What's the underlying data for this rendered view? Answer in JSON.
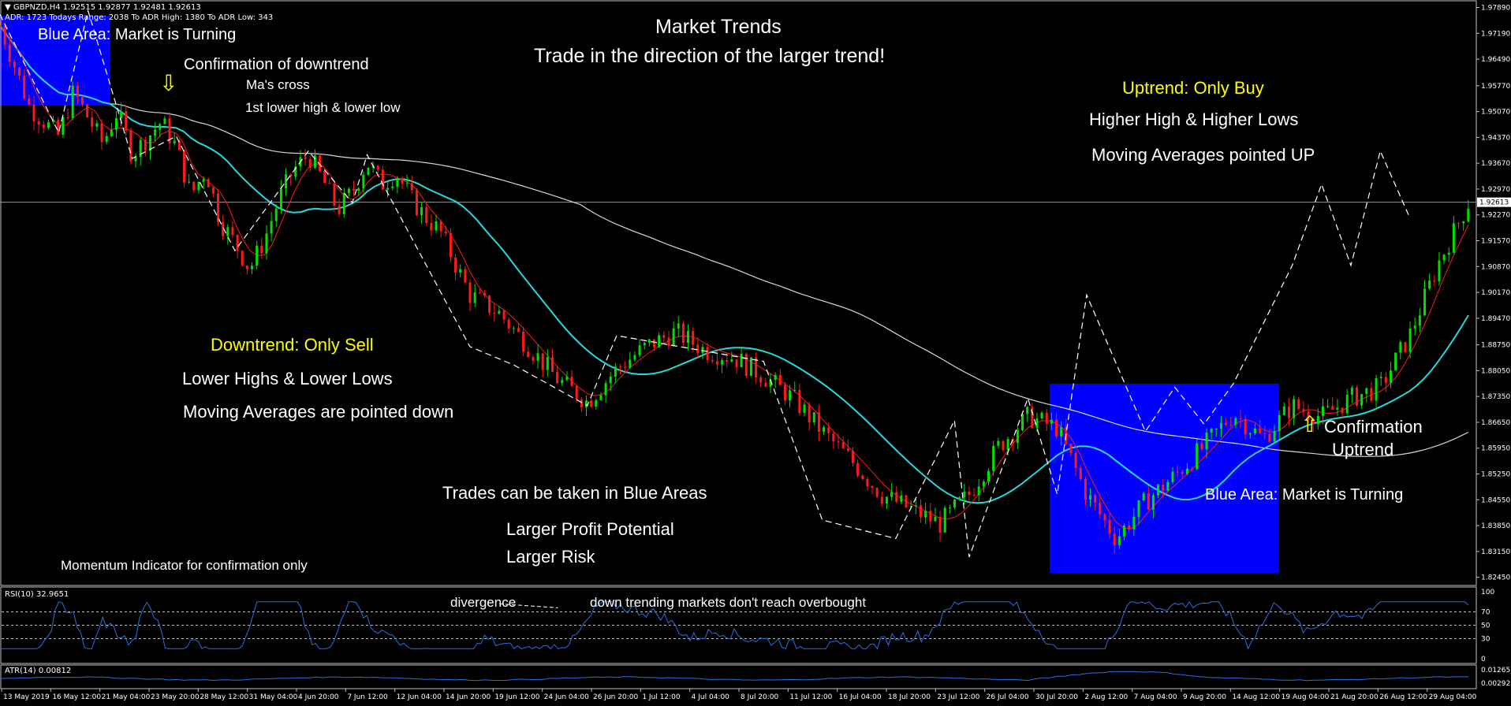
{
  "header": {
    "symbol_line": "▼ GBPNZD,H4  1.92515 1.92877 1.92481 1.92613",
    "stats_line": "ADR: 1723  Todays Range: 2038  To ADR High: 1380  To ADR Low: 343"
  },
  "colors": {
    "background": "#000000",
    "bull_candle": "#00e000",
    "bear_candle": "#ff1a1a",
    "fast_ma": "#ff1a1a",
    "mid_ma": "#29d9d9",
    "slow_ma": "#d8d8d8",
    "zigzag": "#ffffff",
    "blue_area": "#0000ff",
    "rsi_line": "#2a6fdc",
    "atr_line": "#2a6fdc",
    "highlight_text": "#ffff00"
  },
  "annotations": {
    "title": "Market Trends",
    "subtitle": "Trade in the direction of the larger trend!",
    "blue_area_top": "Blue Area: Market is Turning",
    "confirm_down": "Confirmation of downtrend",
    "mas_cross": "Ma's cross",
    "first_lower": "1st lower high & lower low",
    "uptrend_only_buy": "Uptrend: Only Buy",
    "higher_highs": "Higher High & Higher Lows",
    "ma_up": "Moving Averages pointed UP",
    "downtrend_only_sell": "Downtrend: Only Sell",
    "lower_highs": "Lower Highs & Lower Lows",
    "ma_down": "Moving Averages are pointed down",
    "trades_blue": "Trades can be taken in Blue Areas",
    "larger_profit": "Larger Profit Potential",
    "larger_risk": "Larger Risk",
    "momentum_note": "Momentum Indicator for confirmation only",
    "confirm_up_1": "Confirmation",
    "confirm_up_2": "Uptrend",
    "blue_area_bottom": "Blue Area: Market is Turning",
    "divergence": "divergence",
    "down_trending_note": "down trending markets don't reach overbought"
  },
  "chart_data": [
    {
      "type": "line",
      "subtype": "candlestick",
      "title": "GBPNZD,H4",
      "current_price": "1.92613",
      "price_axis_ticks": [
        "1.97890",
        "1.97190",
        "1.96490",
        "1.95770",
        "1.95070",
        "1.94370",
        "1.93670",
        "1.92970",
        "1.92270",
        "1.91570",
        "1.90870",
        "1.90170",
        "1.89470",
        "1.88750",
        "1.88050",
        "1.87350",
        "1.86650",
        "1.85950",
        "1.85250",
        "1.84550",
        "1.83850",
        "1.83150",
        "1.82450"
      ],
      "ylim": [
        1.8225,
        1.9805
      ],
      "x_axis_labels": [
        "13 May 2019",
        "16 May 12:00",
        "21 May 04:00",
        "23 May 20:00",
        "28 May 12:00",
        "31 May 04:00",
        "4 Jun 20:00",
        "7 Jun 12:00",
        "12 Jun 04:00",
        "14 Jun 20:00",
        "19 Jun 12:00",
        "24 Jun 04:00",
        "26 Jun 20:00",
        "1 Jul 12:00",
        "4 Jul 04:00",
        "8 Jul 20:00",
        "11 Jul 12:00",
        "16 Jul 04:00",
        "18 Jul 20:00",
        "23 Jul 12:00",
        "26 Jul 04:00",
        "30 Jul 20:00",
        "2 Aug 12:00",
        "7 Aug 04:00",
        "9 Aug 20:00",
        "14 Aug 12:00",
        "19 Aug 04:00",
        "21 Aug 20:00",
        "26 Aug 12:00",
        "29 Aug 04:00"
      ],
      "series": [
        {
          "name": "Close",
          "x": [
            0,
            2,
            4,
            5,
            7,
            8,
            9,
            11,
            12,
            13,
            14,
            15,
            16,
            17,
            18,
            19,
            20,
            21,
            22,
            23,
            24,
            25,
            26,
            27,
            28,
            29
          ],
          "values": [
            1.974,
            1.952,
            1.944,
            1.956,
            1.942,
            1.951,
            1.939,
            1.948,
            1.941,
            1.928,
            1.935,
            1.921,
            1.915,
            1.908,
            1.916,
            1.927,
            1.935,
            1.939,
            1.932,
            1.924,
            1.929,
            1.937,
            1.931,
            1.934,
            1.927,
            1.922
          ]
        },
        {
          "name": "Close_2",
          "x": [
            30,
            32,
            34,
            36,
            38,
            40,
            42,
            44,
            46,
            48,
            50,
            52,
            54,
            56,
            58,
            60,
            62,
            64,
            66,
            68,
            70,
            72,
            74,
            76,
            78,
            80,
            82,
            84,
            86,
            88,
            90,
            92,
            94,
            96,
            98,
            100
          ],
          "values": [
            1.918,
            1.901,
            1.896,
            1.887,
            1.878,
            1.872,
            1.881,
            1.887,
            1.891,
            1.886,
            1.884,
            1.879,
            1.873,
            1.864,
            1.856,
            1.847,
            1.843,
            1.839,
            1.847,
            1.86,
            1.868,
            1.865,
            1.847,
            1.835,
            1.845,
            1.852,
            1.86,
            1.869,
            1.862,
            1.871,
            1.868,
            1.873,
            1.876,
            1.89,
            1.91,
            1.926
          ]
        }
      ],
      "zigzag": [
        [
          0,
          1.977
        ],
        [
          4,
          1.945
        ],
        [
          6,
          1.978
        ],
        [
          9,
          1.938
        ],
        [
          12,
          1.944
        ],
        [
          16,
          1.913
        ],
        [
          21,
          1.94
        ],
        [
          24,
          1.926
        ],
        [
          25,
          1.939
        ],
        [
          32,
          1.887
        ],
        [
          35,
          1.882
        ],
        [
          40,
          1.871
        ],
        [
          42,
          1.89
        ],
        [
          52,
          1.883
        ],
        [
          56,
          1.84
        ],
        [
          61,
          1.835
        ],
        [
          65,
          1.867
        ],
        [
          66,
          1.83
        ],
        [
          70,
          1.873
        ],
        [
          72,
          1.847
        ],
        [
          74,
          1.901
        ],
        [
          78,
          1.864
        ],
        [
          80,
          1.876
        ],
        [
          82,
          1.866
        ],
        [
          84,
          1.877
        ],
        [
          88,
          1.909
        ],
        [
          90,
          1.931
        ],
        [
          92,
          1.909
        ],
        [
          94,
          1.94
        ],
        [
          96,
          1.922
        ]
      ]
    },
    {
      "type": "line",
      "title": "RSI(10) 32.9651",
      "ylim": [
        0,
        100
      ],
      "levels": [
        30,
        50,
        70
      ],
      "tick_labels": [
        "100",
        "70",
        "50",
        "30",
        "0"
      ]
    },
    {
      "type": "line",
      "title": "ATR(14) 0.00812",
      "tick_labels": [
        "0.01265",
        "0.00292"
      ]
    }
  ]
}
